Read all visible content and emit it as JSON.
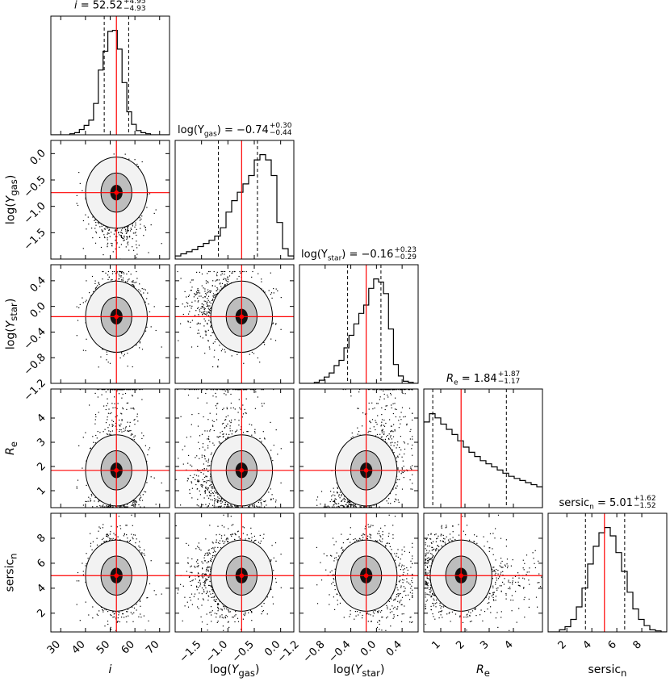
{
  "chart_data": {
    "type": "corner",
    "parameters": [
      {
        "label": "i",
        "median": 52.52,
        "plus": 4.95,
        "minus": 4.93,
        "range": [
          26,
          74
        ],
        "ticks": [
          {
            "v": 30,
            "t": "30"
          },
          {
            "v": 40,
            "t": "40"
          },
          {
            "v": 50,
            "t": "50"
          },
          {
            "v": 60,
            "t": "60"
          },
          {
            "v": 70,
            "t": "70"
          }
        ],
        "title_text": "i = 52.52",
        "title_plus": "+4.95",
        "title_minus": "−4.93",
        "axis_label": "i"
      },
      {
        "label": "log(Y_gas)",
        "median": -0.74,
        "plus": 0.3,
        "minus": 0.44,
        "range": [
          -2.0,
          0.25
        ],
        "ticks": [
          {
            "v": -1.5,
            "t": "−1.5"
          },
          {
            "v": -1.0,
            "t": "−1.0"
          },
          {
            "v": -0.5,
            "t": "−0.5"
          },
          {
            "v": 0.0,
            "t": "0.0"
          }
        ],
        "title_text": "log(Y_gas) = −0.74",
        "title_plus": "+0.30",
        "title_minus": "−0.44",
        "axis_label": "log(Y_gas)"
      },
      {
        "label": "log(Y_star)",
        "median": -0.16,
        "plus": 0.23,
        "minus": 0.29,
        "range": [
          -1.2,
          0.65
        ],
        "ticks": [
          {
            "v": -1.2,
            "t": "−1.2"
          },
          {
            "v": -0.8,
            "t": "−0.8"
          },
          {
            "v": -0.4,
            "t": "−0.4"
          },
          {
            "v": 0.0,
            "t": "0.0"
          },
          {
            "v": 0.4,
            "t": "0.4"
          }
        ],
        "title_text": "log(Y_star) = −0.16",
        "title_plus": "+0.23",
        "title_minus": "−0.29",
        "axis_label": "log(Y_star)"
      },
      {
        "label": "R_e",
        "median": 1.84,
        "plus": 1.87,
        "minus": 1.17,
        "range": [
          0.3,
          5.2
        ],
        "ticks": [
          {
            "v": 1,
            "t": "1"
          },
          {
            "v": 2,
            "t": "2"
          },
          {
            "v": 3,
            "t": "3"
          },
          {
            "v": 4,
            "t": "4"
          }
        ],
        "title_text": "R_e = 1.84",
        "title_plus": "+1.87",
        "title_minus": "−1.17",
        "axis_label": "R_e"
      },
      {
        "label": "sersic_n",
        "median": 5.01,
        "plus": 1.62,
        "minus": 1.52,
        "range": [
          0.5,
          10.0
        ],
        "ticks": [
          {
            "v": 2,
            "t": "2"
          },
          {
            "v": 4,
            "t": "4"
          },
          {
            "v": 6,
            "t": "6"
          },
          {
            "v": 8,
            "t": "8"
          }
        ],
        "title_text": "sersic_n = 5.01",
        "title_plus": "+1.62",
        "title_minus": "−1.52",
        "axis_label": "sersic_n"
      }
    ],
    "histograms": [
      [
        0,
        0,
        0,
        0,
        1,
        2,
        5,
        9,
        14,
        30,
        62,
        80,
        99,
        100,
        82,
        50,
        22,
        10,
        4,
        2,
        1,
        0,
        0,
        0,
        0
      ],
      [
        3,
        5,
        7,
        9,
        12,
        15,
        18,
        22,
        30,
        45,
        56,
        64,
        72,
        80,
        95,
        100,
        95,
        80,
        35,
        10,
        3
      ],
      [
        0,
        0,
        0,
        1,
        3,
        6,
        10,
        17,
        22,
        34,
        46,
        57,
        67,
        75,
        91,
        100,
        97,
        86,
        52,
        18,
        7,
        2,
        1,
        0
      ],
      [
        82,
        90,
        86,
        80,
        75,
        70,
        64,
        58,
        53,
        49,
        45,
        42,
        39,
        36,
        33,
        30,
        28,
        26,
        24,
        22,
        20
      ],
      [
        0,
        0,
        2,
        5,
        12,
        24,
        42,
        65,
        82,
        95,
        100,
        92,
        76,
        58,
        38,
        22,
        12,
        6,
        2,
        1,
        0
      ]
    ],
    "hist_median_line_color": "#ff0000",
    "quantile_line_style": "dashed",
    "truth_color": "#ff0000",
    "density_colormap": "greys"
  }
}
